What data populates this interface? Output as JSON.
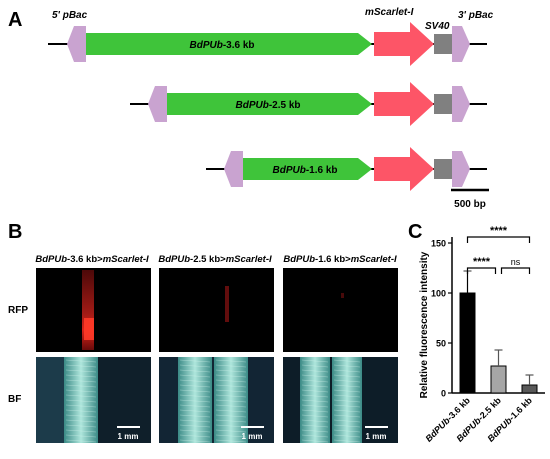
{
  "panels": {
    "a": {
      "letter": "A"
    },
    "b": {
      "letter": "B"
    },
    "c": {
      "letter": "C"
    }
  },
  "construct": {
    "pbac5_label": "5' pBac",
    "pbac3_label": "3' pBac",
    "reporter_label": "mScarlet-I",
    "sv40_label": "SV40",
    "scalebar_label": "500 bp",
    "rows": [
      {
        "promoter": "BdPUb",
        "size": "-3.6 kb"
      },
      {
        "promoter": "BdPUb",
        "size": "-2.5 kb"
      },
      {
        "promoter": "BdPUb",
        "size": "-1.6 kb"
      }
    ],
    "colors": {
      "pbac": "#c9a3d0",
      "promoter": "#3fc43a",
      "reporter": "#fd5567",
      "sv40": "#808080"
    }
  },
  "images": {
    "columns": [
      {
        "promoter": "BdPUb",
        "size": "-3.6 kb>",
        "reporter": "mScarlet-I"
      },
      {
        "promoter": "BdPUb",
        "size": "-2.5 kb>",
        "reporter": "mScarlet-I"
      },
      {
        "promoter": "BdPUb",
        "size": "-1.6 kb>",
        "reporter": "mScarlet-I"
      }
    ],
    "row_labels": [
      "RFP",
      "BF"
    ],
    "scale_label": "1 mm"
  },
  "chart_data": {
    "type": "bar",
    "categories": [
      "BdPUb-3.6 kb",
      "BdPUb-2.5 kb",
      "BdPUb-1.6 kb"
    ],
    "values": [
      100,
      27,
      8
    ],
    "errors": [
      22,
      16,
      10
    ],
    "bar_colors": [
      "#000000",
      "#a6a6a6",
      "#595959"
    ],
    "ylabel": "Relative fluorescence intensity",
    "ylim": [
      0,
      150
    ],
    "yticks": [
      0,
      50,
      100,
      150
    ],
    "significance": [
      {
        "from": 0,
        "to": 2,
        "label": "****"
      },
      {
        "from": 0,
        "to": 1,
        "label": "****"
      },
      {
        "from": 1,
        "to": 2,
        "label": "ns"
      }
    ]
  }
}
